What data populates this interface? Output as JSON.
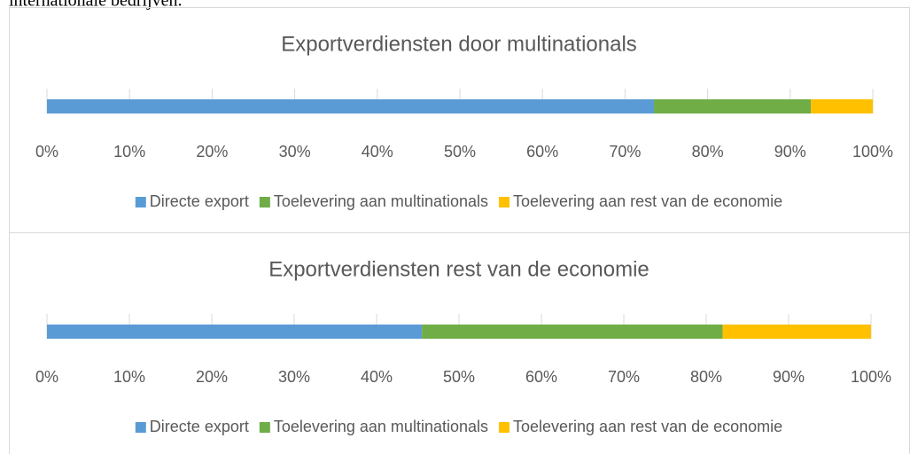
{
  "caption_text": "internationale bedrijven.",
  "chart_data": [
    {
      "type": "bar",
      "orientation": "horizontal",
      "stacked": true,
      "title": "Exportverdiensten door multinationals",
      "series": [
        {
          "name": "Directe export",
          "color": "#5b9bd5",
          "values": [
            73.5
          ]
        },
        {
          "name": "Toelevering aan multinationals",
          "color": "#70ad47",
          "values": [
            19
          ]
        },
        {
          "name": "Toelevering aan rest van de economie",
          "color": "#ffc000",
          "values": [
            7.5
          ]
        }
      ],
      "xlim": [
        0,
        100
      ],
      "xticks": [
        {
          "value": 0,
          "label": "0%"
        },
        {
          "value": 10,
          "label": "10%"
        },
        {
          "value": 20,
          "label": "20%"
        },
        {
          "value": 30,
          "label": "30%"
        },
        {
          "value": 40,
          "label": "40%"
        },
        {
          "value": 50,
          "label": "50%"
        },
        {
          "value": 60,
          "label": "60%"
        },
        {
          "value": 70,
          "label": "70%"
        },
        {
          "value": 80,
          "label": "80%"
        },
        {
          "value": 90,
          "label": "90%"
        },
        {
          "value": 100,
          "label": "100%"
        }
      ],
      "grid": true,
      "legend": "bottom"
    },
    {
      "type": "bar",
      "orientation": "horizontal",
      "stacked": true,
      "title": "Exportverdiensten rest van de economie",
      "series": [
        {
          "name": "Directe export",
          "color": "#5b9bd5",
          "values": [
            45.5
          ]
        },
        {
          "name": "Toelevering aan multinationals",
          "color": "#70ad47",
          "values": [
            36.5
          ]
        },
        {
          "name": "Toelevering aan rest van de economie",
          "color": "#ffc000",
          "values": [
            18
          ]
        }
      ],
      "xlim": [
        0,
        100
      ],
      "xticks": [
        {
          "value": 0,
          "label": "0%"
        },
        {
          "value": 10,
          "label": "10%"
        },
        {
          "value": 20,
          "label": "20%"
        },
        {
          "value": 30,
          "label": "30%"
        },
        {
          "value": 40,
          "label": "40%"
        },
        {
          "value": 50,
          "label": "50%"
        },
        {
          "value": 60,
          "label": "60%"
        },
        {
          "value": 70,
          "label": "70%"
        },
        {
          "value": 80,
          "label": "80%"
        },
        {
          "value": 90,
          "label": "90%"
        },
        {
          "value": 100,
          "label": "100%"
        }
      ],
      "grid": true,
      "legend": "bottom"
    }
  ]
}
